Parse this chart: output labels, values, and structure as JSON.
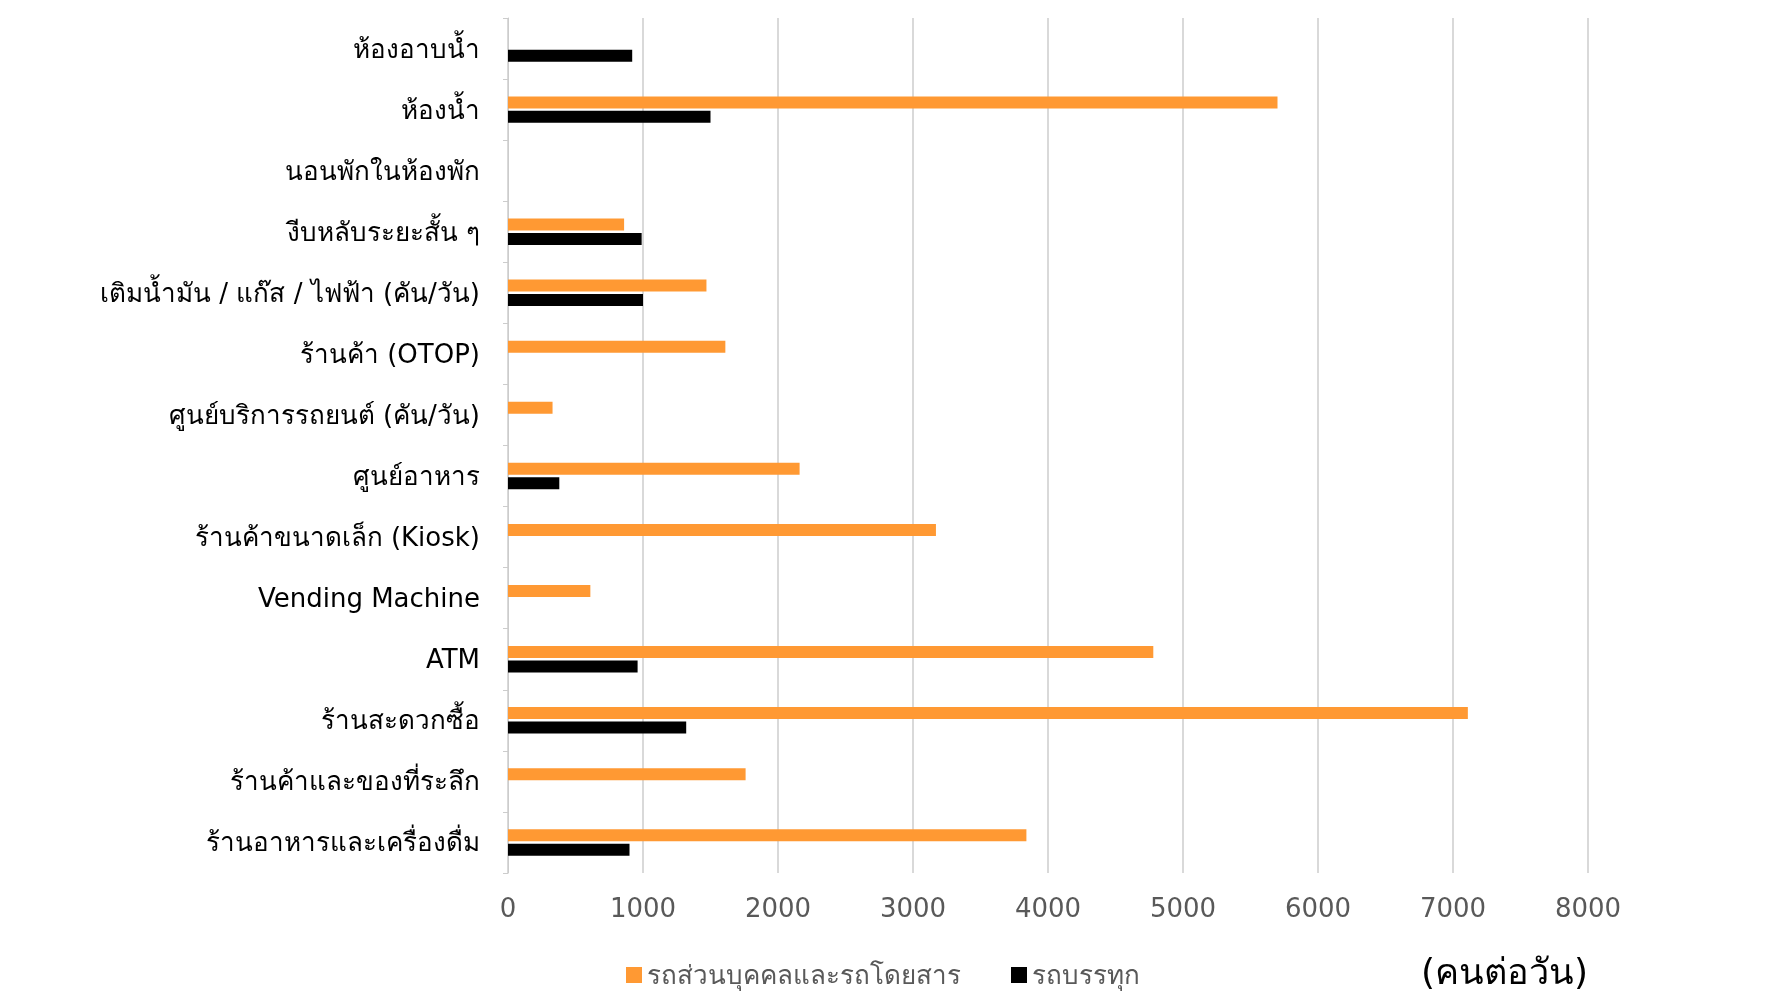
{
  "chart_data": {
    "type": "bar",
    "orientation": "horizontal",
    "xlabel": "(คนต่อวัน)",
    "categories": [
      "ห้องอาบน้ำ",
      "ห้องน้ำ",
      "นอนพักในห้องพัก",
      "งีบหลับระยะสั้น ๆ",
      "เติมน้ำมัน / แก๊ส / ไฟฟ้า (คัน/วัน)",
      "ร้านค้า (OTOP)",
      "ศูนย์บริการรถยนต์ (คัน/วัน)",
      "ศูนย์อาหาร",
      "ร้านค้าขนาดเล็ก (Kiosk)",
      "Vending Machine",
      "ATM",
      "ร้านสะดวกซื้อ",
      "ร้านค้าและของที่ระลึก",
      "ร้านอาหารและเครื่องดื่ม"
    ],
    "series": [
      {
        "name": "รถส่วนบุคคลและรถโดยสาร",
        "color": "#ff9933",
        "values": [
          null,
          5700,
          null,
          860,
          1470,
          1610,
          330,
          2160,
          3170,
          610,
          4780,
          7110,
          1760,
          3840
        ]
      },
      {
        "name": "รถบรรทุก",
        "color": "#000000",
        "values": [
          920,
          1500,
          null,
          990,
          1000,
          null,
          null,
          380,
          null,
          null,
          960,
          1320,
          null,
          900
        ]
      }
    ],
    "xlim": [
      0,
      8000
    ],
    "xticks": [
      0,
      1000,
      2000,
      3000,
      4000,
      5000,
      6000,
      7000,
      8000
    ],
    "grid": "x",
    "legend": "bottom"
  }
}
